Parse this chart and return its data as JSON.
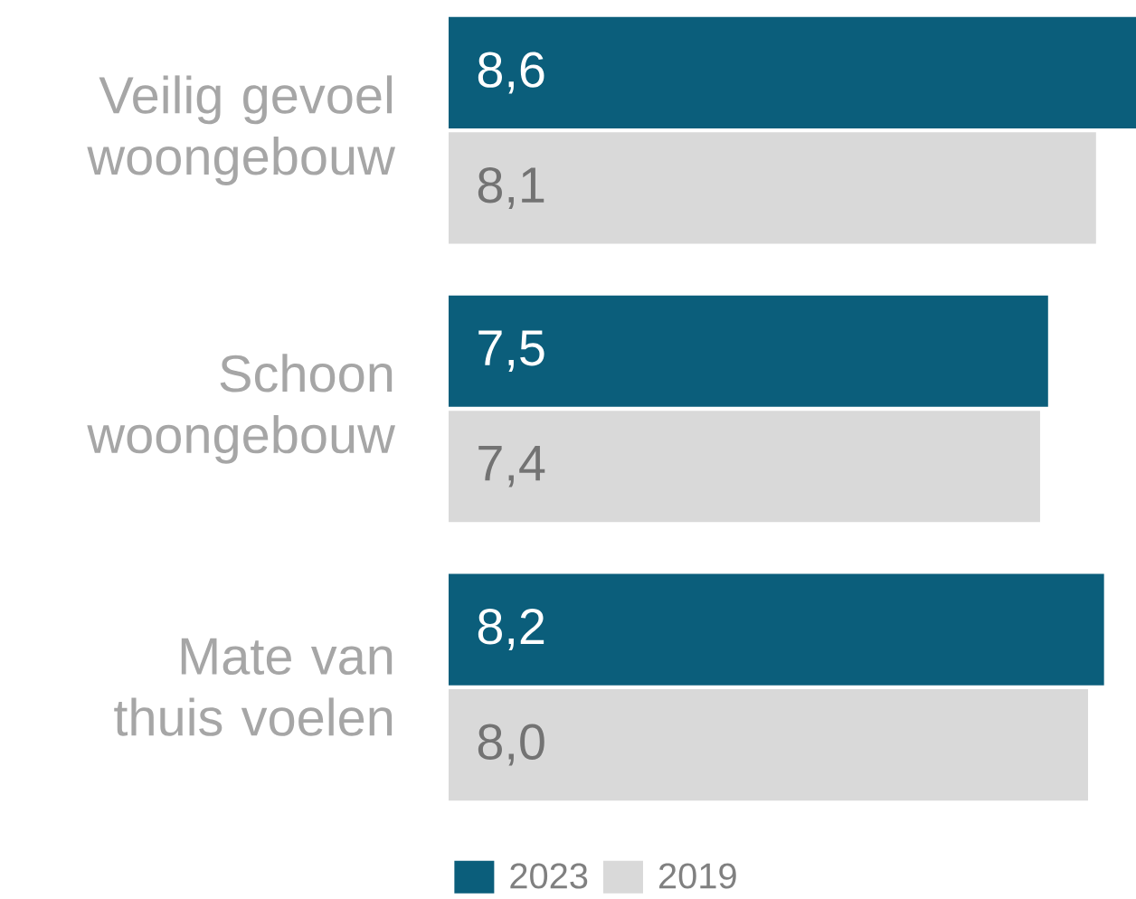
{
  "chart_data": {
    "type": "bar",
    "orientation": "horizontal",
    "categories": [
      "Veilig gevoel woongebouw",
      "Schoon woongebouw",
      "Mate van thuis voelen"
    ],
    "series": [
      {
        "name": "2023",
        "color": "#0b5e7b",
        "values": [
          8.6,
          7.5,
          8.2
        ],
        "value_labels": [
          "8,6",
          "7,5",
          "8,2"
        ]
      },
      {
        "name": "2019",
        "color": "#d9d9d9",
        "values": [
          8.1,
          7.4,
          8.0
        ],
        "value_labels": [
          "8,1",
          "7,4",
          "8,0"
        ]
      }
    ],
    "legend": "bottom left"
  }
}
